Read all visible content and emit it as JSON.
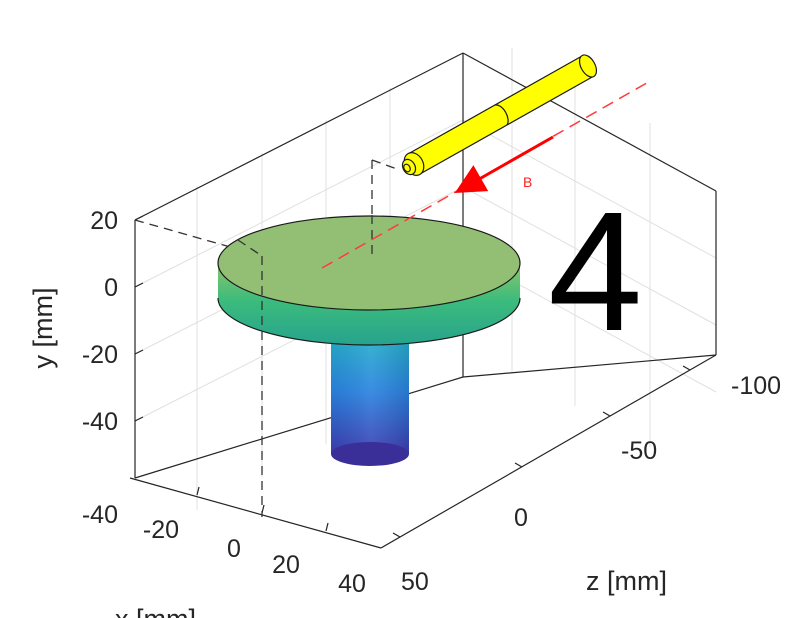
{
  "chart_data": {
    "type": "3d-scene",
    "axes": {
      "x": {
        "label": "x [mm]",
        "ticks": [
          "-20",
          "0",
          "20",
          "40"
        ]
      },
      "y": {
        "label": "y [mm]",
        "ticks": [
          "20",
          "0",
          "-20",
          "-40"
        ]
      },
      "z": {
        "label": "z [mm]",
        "ticks": [
          "-100",
          "-50",
          "0",
          "50"
        ]
      }
    },
    "grid": true,
    "projection_guides": "dashed black lines from the disc top to the axis walls",
    "objects": [
      {
        "name": "disc",
        "kind": "cylinder",
        "color": "#93bf74",
        "side_colormap": "parula"
      },
      {
        "name": "stem",
        "kind": "cylinder",
        "colormap": "parula (blue at bottom, cyan at top)"
      },
      {
        "name": "beam-source",
        "kind": "segmented cylinder",
        "color": "#ffff00"
      }
    ],
    "beam_line": {
      "color": "#ff3b3b",
      "style": "dashed"
    },
    "arrow": {
      "label": "B",
      "color": "#ff0000"
    },
    "panel_label": "4"
  },
  "colors": {
    "axis": "#262626",
    "grid": "#e0e0e0",
    "disc_top": "#93bf74",
    "beam": "#ff3b3b",
    "source": "#ffff00"
  }
}
